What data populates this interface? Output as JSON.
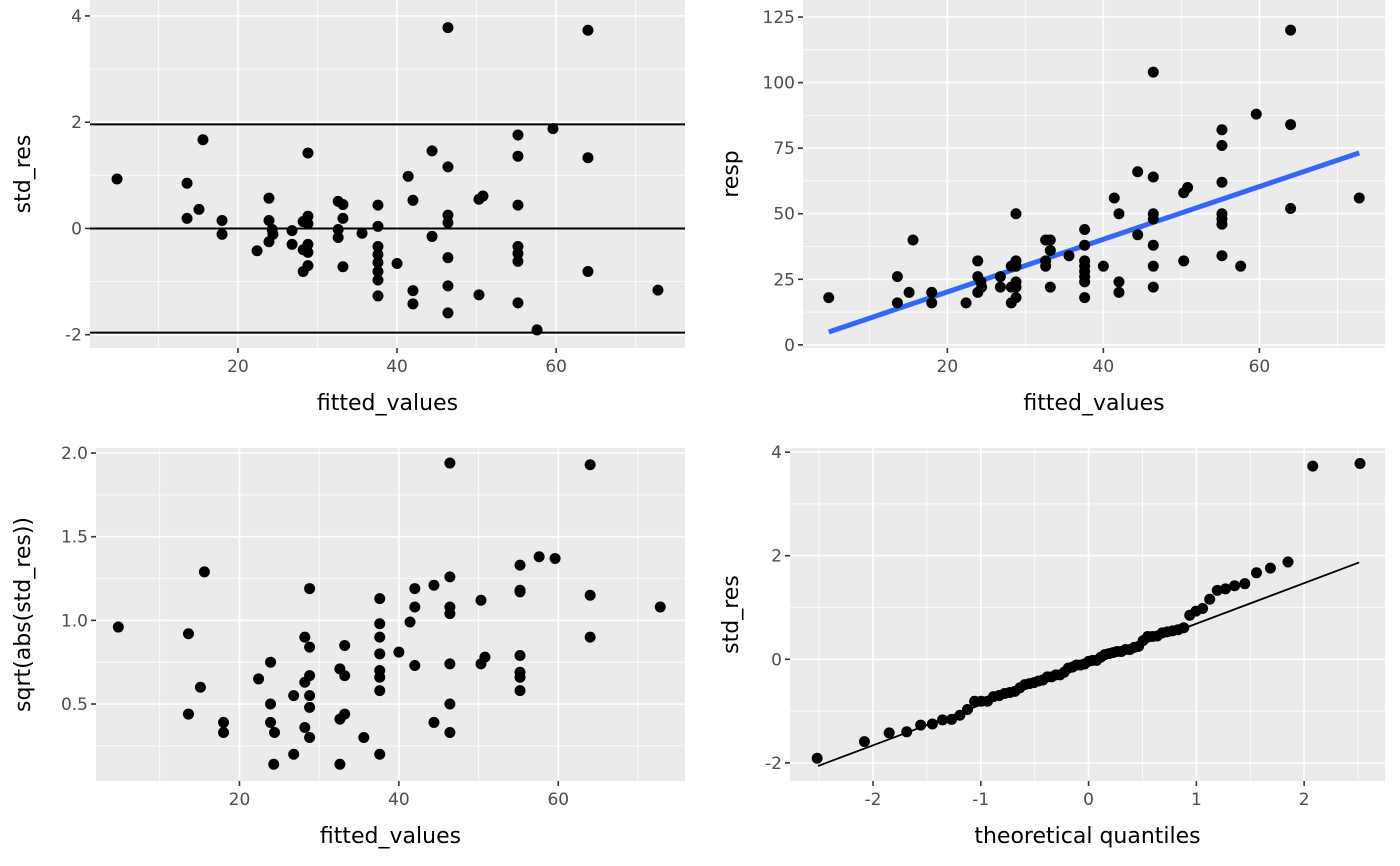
{
  "chart_data": [
    {
      "type": "scatter",
      "id": "residuals-vs-fitted",
      "xlabel": "fitted_values",
      "ylabel": "std_res",
      "xlim": [
        1.4,
        76.2
      ],
      "ylim": [
        -2.25,
        4.3
      ],
      "xticks": [
        20,
        40,
        60
      ],
      "yticks": [
        -2,
        0,
        2,
        4
      ],
      "xtick_labels": [
        "20",
        "40",
        "60"
      ],
      "ytick_labels": [
        "-2",
        "0",
        "2",
        "4"
      ],
      "hlines": [
        -1.96,
        0,
        1.96
      ],
      "x": [
        4.8,
        15.6,
        13.6,
        13.6,
        15.1,
        18.0,
        18.0,
        23.9,
        23.9,
        24.3,
        24.4,
        23.9,
        22.4,
        26.8,
        26.8,
        28.8,
        28.8,
        28.2,
        28.8,
        28.8,
        28.2,
        28.8,
        28.8,
        28.2,
        32.6,
        33.2,
        33.2,
        32.6,
        32.6,
        33.2,
        35.6,
        37.6,
        37.6,
        37.6,
        37.6,
        37.6,
        37.6,
        37.6,
        37.6,
        40.0,
        41.4,
        42.0,
        42.0,
        42.0,
        44.4,
        44.4,
        46.4,
        46.4,
        46.4,
        46.4,
        46.4,
        46.4,
        46.4,
        50.3,
        50.3,
        50.8,
        55.2,
        55.2,
        55.2,
        55.2,
        55.2,
        55.2,
        55.2,
        57.6,
        59.6,
        64.0,
        64.0,
        64.0,
        72.8
      ],
      "y": [
        0.93,
        1.67,
        0.85,
        0.19,
        0.36,
        0.15,
        -0.11,
        0.57,
        0.15,
        -0.02,
        -0.11,
        -0.25,
        -0.42,
        -0.04,
        -0.3,
        1.42,
        0.23,
        0.13,
        0.09,
        -0.3,
        -0.4,
        -0.45,
        -0.7,
        -0.81,
        0.51,
        0.45,
        0.19,
        -0.02,
        -0.17,
        -0.72,
        -0.09,
        0.44,
        0.04,
        -0.34,
        -0.49,
        -0.64,
        -0.81,
        -0.97,
        -1.27,
        -0.66,
        0.98,
        0.53,
        -1.17,
        -1.42,
        1.46,
        -0.15,
        1.16,
        0.25,
        0.11,
        -0.55,
        -1.08,
        -1.59,
        3.78,
        -1.25,
        0.55,
        0.61,
        1.76,
        1.36,
        0.44,
        -0.34,
        -0.47,
        -0.62,
        -1.4,
        -1.91,
        1.88,
        1.33,
        -0.81,
        3.73,
        -1.16
      ]
    },
    {
      "type": "scatter",
      "id": "response-vs-fitted",
      "xlabel": "fitted_values",
      "ylabel": "resp",
      "xlim": [
        1.5,
        76.1
      ],
      "ylim": [
        -1.2,
        131.5
      ],
      "xticks": [
        20,
        40,
        60
      ],
      "yticks": [
        0,
        25,
        50,
        75,
        100,
        125
      ],
      "xtick_labels": [
        "20",
        "40",
        "60"
      ],
      "ytick_labels": [
        "0",
        "25",
        "50",
        "75",
        "100",
        "125"
      ],
      "fit_line": {
        "x": [
          4.8,
          72.8
        ],
        "y": [
          4.9,
          73.2
        ],
        "color": "#3366ff"
      },
      "x": [
        4.8,
        15.6,
        13.6,
        13.6,
        15.1,
        18.0,
        18.0,
        23.9,
        23.9,
        24.3,
        24.4,
        23.9,
        22.4,
        26.8,
        26.8,
        28.8,
        28.8,
        28.2,
        28.8,
        28.8,
        28.2,
        28.8,
        28.8,
        28.2,
        32.6,
        33.2,
        33.2,
        32.6,
        32.6,
        33.2,
        35.6,
        37.6,
        37.6,
        37.6,
        37.6,
        37.6,
        37.6,
        37.6,
        37.6,
        40.0,
        41.4,
        42.0,
        42.0,
        42.0,
        44.4,
        44.4,
        46.4,
        46.4,
        46.4,
        46.4,
        46.4,
        46.4,
        46.4,
        50.3,
        50.3,
        50.8,
        55.2,
        55.2,
        55.2,
        55.2,
        55.2,
        55.2,
        55.2,
        57.6,
        59.6,
        64.0,
        64.0,
        64.0,
        72.8
      ],
      "y": [
        18,
        40,
        26,
        16,
        20,
        20,
        16,
        32,
        26,
        24,
        22,
        20,
        16,
        26,
        22,
        50,
        32,
        30,
        30,
        24,
        22,
        22,
        18,
        16,
        40,
        40,
        36,
        32,
        30,
        22,
        34,
        44,
        38,
        32,
        30,
        28,
        26,
        24,
        18,
        30,
        56,
        50,
        24,
        20,
        66,
        42,
        64,
        50,
        48,
        38,
        30,
        22,
        104,
        32,
        58,
        60,
        82,
        76,
        62,
        50,
        48,
        46,
        34,
        30,
        88,
        84,
        52,
        120,
        56
      ]
    },
    {
      "type": "scatter",
      "id": "scale-location",
      "xlabel": "fitted_values",
      "ylabel": "sqrt(abs(std_res))",
      "xlim": [
        2.0,
        75.9
      ],
      "ylim": [
        0.04,
        2.03
      ],
      "xticks": [
        20,
        40,
        60
      ],
      "yticks": [
        0.5,
        1.0,
        1.5,
        2.0
      ],
      "xtick_labels": [
        "20",
        "40",
        "60"
      ],
      "ytick_labels": [
        "0.5",
        "1.0",
        "1.5",
        "2.0"
      ],
      "x": [
        4.8,
        15.6,
        13.6,
        13.6,
        15.1,
        18.0,
        18.0,
        23.9,
        23.9,
        24.3,
        24.4,
        23.9,
        22.4,
        26.8,
        26.8,
        28.8,
        28.8,
        28.2,
        28.8,
        28.8,
        28.2,
        28.8,
        28.8,
        28.2,
        32.6,
        33.2,
        33.2,
        32.6,
        32.6,
        33.2,
        35.6,
        37.6,
        37.6,
        37.6,
        37.6,
        37.6,
        37.6,
        37.6,
        37.6,
        40.0,
        41.4,
        42.0,
        42.0,
        42.0,
        44.4,
        44.4,
        46.4,
        46.4,
        46.4,
        46.4,
        46.4,
        46.4,
        46.4,
        50.3,
        50.3,
        50.8,
        55.2,
        55.2,
        55.2,
        55.2,
        55.2,
        55.2,
        55.2,
        57.6,
        59.6,
        64.0,
        64.0,
        64.0,
        72.8
      ],
      "y": [
        0.96,
        1.29,
        0.92,
        0.44,
        0.6,
        0.39,
        0.33,
        0.75,
        0.39,
        0.14,
        0.33,
        0.5,
        0.65,
        0.2,
        0.55,
        1.19,
        0.48,
        0.36,
        0.3,
        0.55,
        0.63,
        0.67,
        0.84,
        0.9,
        0.71,
        0.67,
        0.44,
        0.14,
        0.41,
        0.85,
        0.3,
        0.66,
        0.2,
        0.58,
        0.7,
        0.8,
        0.9,
        0.98,
        1.13,
        0.81,
        0.99,
        0.73,
        1.08,
        1.19,
        1.21,
        0.39,
        1.08,
        0.5,
        0.33,
        0.74,
        1.04,
        1.26,
        1.94,
        1.12,
        0.74,
        0.78,
        1.33,
        1.17,
        0.66,
        0.58,
        0.69,
        0.79,
        1.18,
        1.38,
        1.37,
        1.15,
        0.9,
        1.93,
        1.08
      ]
    },
    {
      "type": "scatter",
      "id": "normal-qq",
      "xlabel": "theoretical quantiles",
      "ylabel": "std_res",
      "xlim": [
        -2.77,
        2.75
      ],
      "ylim": [
        -2.35,
        4.08
      ],
      "xticks": [
        -2,
        -1,
        0,
        1,
        2
      ],
      "yticks": [
        -2,
        0,
        2,
        4
      ],
      "xtick_labels": [
        "-2",
        "-1",
        "0",
        "1",
        "2"
      ],
      "ytick_labels": [
        "-2",
        "0",
        "2",
        "4"
      ],
      "qq_line": {
        "x": [
          -2.51,
          2.51
        ],
        "y": [
          -2.06,
          1.87
        ]
      },
      "sample": "sorted std_res of panel 1 vs normal quantiles (i-0.5)/n"
    }
  ]
}
